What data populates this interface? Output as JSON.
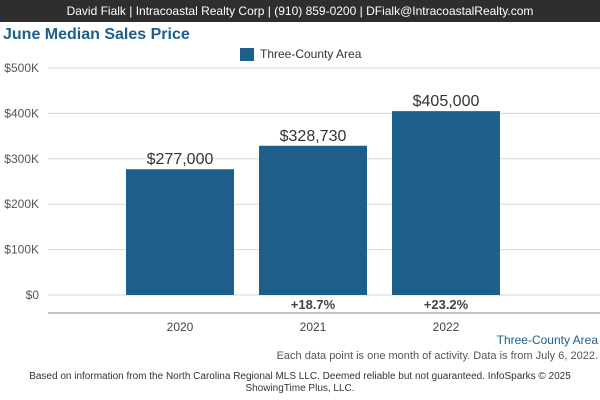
{
  "header": {
    "banner": "David Fialk | Intracoastal Realty Corp | (910) 859-0200 | DFialk@IntracoastalRealty.com"
  },
  "colors": {
    "accent": "#1d5f8a",
    "banner_bg": "#2e2e2e"
  },
  "chart_data": {
    "type": "bar",
    "title": "June Median Sales Price",
    "categories": [
      "2020",
      "2021",
      "2022"
    ],
    "series": [
      {
        "name": "Three-County Area",
        "values": [
          277000,
          328730,
          405000
        ],
        "value_labels": [
          "$277,000",
          "$328,730",
          "$405,000"
        ],
        "change_labels": [
          "",
          "+18.7%",
          "+23.2%"
        ]
      }
    ],
    "ylim": [
      0,
      500000
    ],
    "yticks": [
      0,
      100000,
      200000,
      300000,
      400000,
      500000
    ],
    "ytick_labels": [
      "$0",
      "$100K",
      "$200K",
      "$300K",
      "$400K",
      "$500K"
    ],
    "grid": true,
    "legend_position": "top-center",
    "xlabel": "",
    "ylabel": ""
  },
  "footer": {
    "series_label": "Three-County Area",
    "note": "Each data point is one month of activity. Data is from July 6, 2022.",
    "disclaimer": "Based on information from the North Carolina Regional MLS LLC. Deemed reliable but not guaranteed. InfoSparks © 2025 ShowingTime Plus, LLC."
  }
}
